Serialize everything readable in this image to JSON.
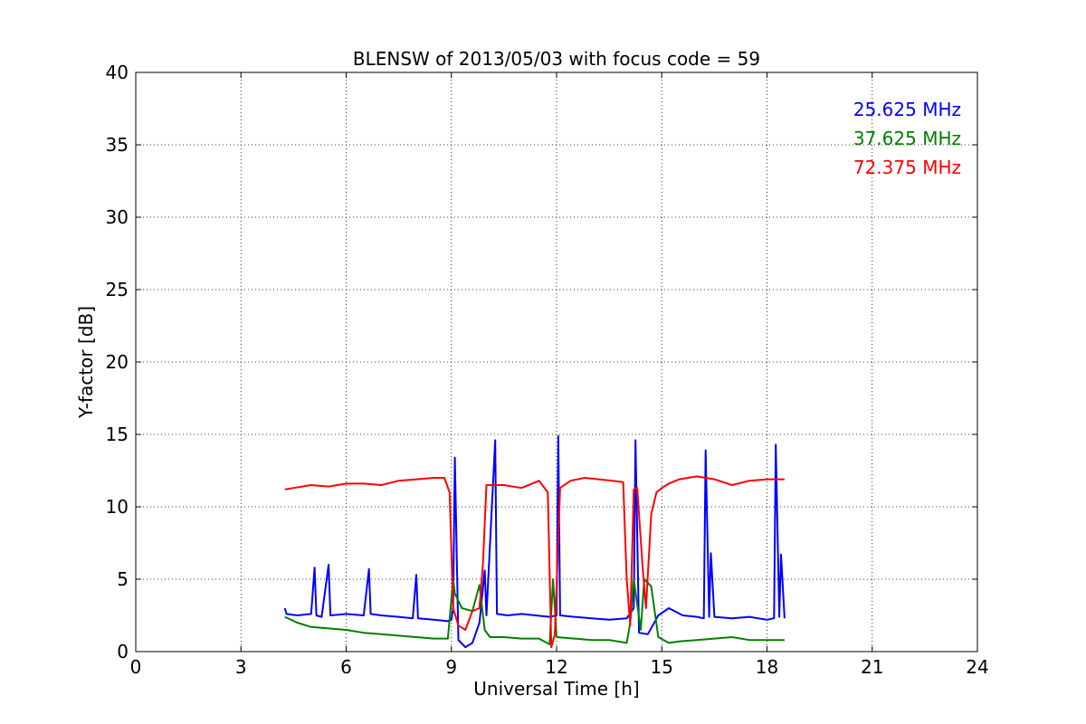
{
  "chart_data": {
    "type": "line",
    "title": "BLENSW of 2013/05/03 with focus code = 59",
    "xlabel": "Universal Time [h]",
    "ylabel": "Y-factor [dB]",
    "xlim": [
      0,
      24
    ],
    "ylim": [
      0,
      40
    ],
    "xticks": [
      0,
      3,
      6,
      9,
      12,
      15,
      18,
      21,
      24
    ],
    "yticks": [
      0,
      5,
      10,
      15,
      20,
      25,
      30,
      35,
      40
    ],
    "xtick_labels": [
      "0",
      "3",
      "6",
      "9",
      "12",
      "15",
      "18",
      "21",
      "24"
    ],
    "ytick_labels": [
      "0",
      "5",
      "10",
      "15",
      "20",
      "25",
      "30",
      "35",
      "40"
    ],
    "grid": true,
    "legend": {
      "placement": "top-right"
    },
    "series": [
      {
        "name": "25.625 MHz",
        "color": "#0000ff",
        "x": [
          4.25,
          4.3,
          4.6,
          5.0,
          5.1,
          5.15,
          5.3,
          5.5,
          5.55,
          6.0,
          6.5,
          6.65,
          6.7,
          7.0,
          7.5,
          7.9,
          8.0,
          8.05,
          8.5,
          8.9,
          9.0,
          9.05,
          9.1,
          9.2,
          9.4,
          9.6,
          9.8,
          9.95,
          10.0,
          10.25,
          10.3,
          10.6,
          11.0,
          11.4,
          11.8,
          12.0,
          12.05,
          12.1,
          12.5,
          13.0,
          13.5,
          14.0,
          14.2,
          14.25,
          14.35,
          14.6,
          14.9,
          15.2,
          15.6,
          16.0,
          16.2,
          16.25,
          16.35,
          16.4,
          16.5,
          17.0,
          17.5,
          18.0,
          18.2,
          18.25,
          18.35,
          18.4,
          18.5
        ],
        "y": [
          3.0,
          2.6,
          2.5,
          2.6,
          5.8,
          2.5,
          2.4,
          6.0,
          2.5,
          2.6,
          2.5,
          5.7,
          2.6,
          2.5,
          2.4,
          2.3,
          5.3,
          2.3,
          2.2,
          2.1,
          2.2,
          3.0,
          13.4,
          0.8,
          0.3,
          0.6,
          2.0,
          5.6,
          2.5,
          14.6,
          2.6,
          2.5,
          2.6,
          2.5,
          2.4,
          2.5,
          14.9,
          2.5,
          2.4,
          2.3,
          2.2,
          2.3,
          3.0,
          14.6,
          1.3,
          1.2,
          2.5,
          3.0,
          2.5,
          2.4,
          2.3,
          13.9,
          2.4,
          6.8,
          2.4,
          2.3,
          2.4,
          2.2,
          2.3,
          14.3,
          2.4,
          6.7,
          2.3
        ]
      },
      {
        "name": "37.625 MHz",
        "color": "#008000",
        "x": [
          4.25,
          4.6,
          5.0,
          5.5,
          6.0,
          6.5,
          7.0,
          7.5,
          8.0,
          8.5,
          8.9,
          9.05,
          9.1,
          9.3,
          9.6,
          9.8,
          9.95,
          10.1,
          10.5,
          11.0,
          11.5,
          11.8,
          11.9,
          12.0,
          12.5,
          13.0,
          13.5,
          14.0,
          14.1,
          14.2,
          14.4,
          14.5,
          14.7,
          14.9,
          15.2,
          15.5,
          16.0,
          16.5,
          17.0,
          17.5,
          18.0,
          18.5
        ],
        "y": [
          2.4,
          2.0,
          1.7,
          1.6,
          1.5,
          1.3,
          1.2,
          1.1,
          1.0,
          0.9,
          0.9,
          5.0,
          4.0,
          3.0,
          2.8,
          4.6,
          1.5,
          1.0,
          1.0,
          0.9,
          0.9,
          0.5,
          5.0,
          1.0,
          0.9,
          0.8,
          0.8,
          0.6,
          2.0,
          5.0,
          1.5,
          5.0,
          4.5,
          1.0,
          0.6,
          0.7,
          0.8,
          0.9,
          1.0,
          0.8,
          0.8,
          0.8
        ]
      },
      {
        "name": "72.375 MHz",
        "color": "#ff0000",
        "x": [
          4.25,
          4.5,
          5.0,
          5.5,
          6.0,
          6.5,
          7.0,
          7.5,
          8.0,
          8.5,
          8.8,
          8.95,
          9.05,
          9.2,
          9.4,
          9.6,
          9.8,
          9.9,
          10.0,
          10.5,
          11.0,
          11.5,
          11.75,
          11.85,
          11.95,
          12.1,
          12.4,
          12.8,
          13.2,
          13.6,
          13.9,
          14.0,
          14.1,
          14.2,
          14.3,
          14.45,
          14.55,
          14.7,
          14.85,
          15.0,
          15.2,
          15.5,
          16.0,
          16.5,
          17.0,
          17.5,
          18.0,
          18.5
        ],
        "y": [
          11.2,
          11.3,
          11.5,
          11.4,
          11.6,
          11.6,
          11.5,
          11.8,
          11.9,
          12.0,
          12.0,
          11.0,
          3.0,
          1.8,
          1.5,
          2.8,
          3.0,
          6.0,
          11.5,
          11.5,
          11.3,
          11.8,
          11.0,
          0.3,
          1.2,
          11.3,
          11.8,
          12.0,
          11.9,
          11.8,
          11.7,
          5.0,
          1.8,
          11.2,
          11.3,
          6.0,
          3.0,
          9.5,
          11.0,
          11.3,
          11.6,
          11.9,
          12.1,
          11.9,
          11.5,
          11.8,
          11.9,
          11.9
        ]
      }
    ]
  }
}
